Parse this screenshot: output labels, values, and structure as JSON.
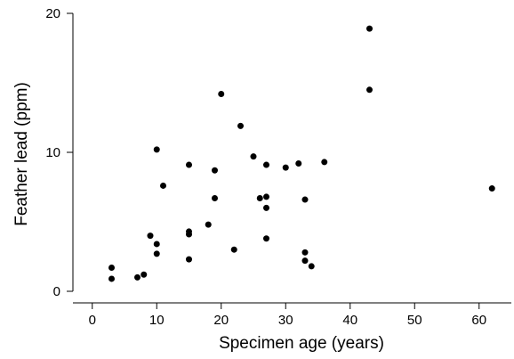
{
  "chart_data": {
    "type": "scatter",
    "xlabel": "Specimen age (years)",
    "ylabel": "Feather lead (ppm)",
    "xlim": [
      -3,
      65
    ],
    "ylim": [
      0,
      20
    ],
    "xticks": [
      0,
      10,
      20,
      30,
      40,
      50,
      60
    ],
    "yticks": [
      0,
      10,
      20
    ],
    "grid": false,
    "legend": "none",
    "marker_color": "#000000",
    "points": [
      {
        "x": 3,
        "y": 1.7
      },
      {
        "x": 3,
        "y": 0.9
      },
      {
        "x": 7,
        "y": 1.0
      },
      {
        "x": 8,
        "y": 1.2
      },
      {
        "x": 9,
        "y": 4.0
      },
      {
        "x": 10,
        "y": 10.2
      },
      {
        "x": 10,
        "y": 3.4
      },
      {
        "x": 10,
        "y": 2.7
      },
      {
        "x": 11,
        "y": 7.6
      },
      {
        "x": 15,
        "y": 9.1
      },
      {
        "x": 15,
        "y": 4.3
      },
      {
        "x": 15,
        "y": 4.1
      },
      {
        "x": 15,
        "y": 2.3
      },
      {
        "x": 18,
        "y": 4.8
      },
      {
        "x": 19,
        "y": 8.7
      },
      {
        "x": 19,
        "y": 6.7
      },
      {
        "x": 20,
        "y": 14.2
      },
      {
        "x": 22,
        "y": 3.0
      },
      {
        "x": 23,
        "y": 11.9
      },
      {
        "x": 25,
        "y": 9.7
      },
      {
        "x": 26,
        "y": 6.7
      },
      {
        "x": 27,
        "y": 9.1
      },
      {
        "x": 27,
        "y": 6.8
      },
      {
        "x": 27,
        "y": 6.0
      },
      {
        "x": 27,
        "y": 3.8
      },
      {
        "x": 30,
        "y": 8.9
      },
      {
        "x": 32,
        "y": 9.2
      },
      {
        "x": 33,
        "y": 6.6
      },
      {
        "x": 33,
        "y": 2.8
      },
      {
        "x": 33,
        "y": 2.2
      },
      {
        "x": 34,
        "y": 1.8
      },
      {
        "x": 36,
        "y": 9.3
      },
      {
        "x": 43,
        "y": 18.9
      },
      {
        "x": 43,
        "y": 14.5
      },
      {
        "x": 62,
        "y": 7.4
      }
    ]
  }
}
